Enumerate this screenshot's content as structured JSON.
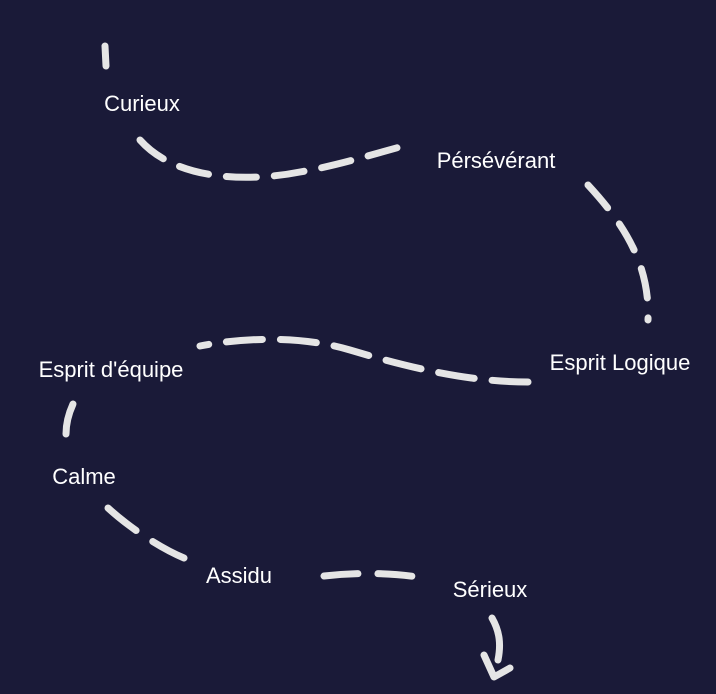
{
  "colors": {
    "background": "#1a1a38",
    "path": "#e5e5e5",
    "text": "#ffffff"
  },
  "traits": [
    {
      "id": "curieux",
      "label": "Curieux"
    },
    {
      "id": "perseverant",
      "label": "Pérsévérant"
    },
    {
      "id": "esprit-logique",
      "label": "Esprit Logique"
    },
    {
      "id": "esprit-equipe",
      "label": "Esprit d'équipe"
    },
    {
      "id": "calme",
      "label": "Calme"
    },
    {
      "id": "assidu",
      "label": "Assidu"
    },
    {
      "id": "serieux",
      "label": "Sérieux"
    }
  ],
  "end_marker": "arrow-down-icon"
}
